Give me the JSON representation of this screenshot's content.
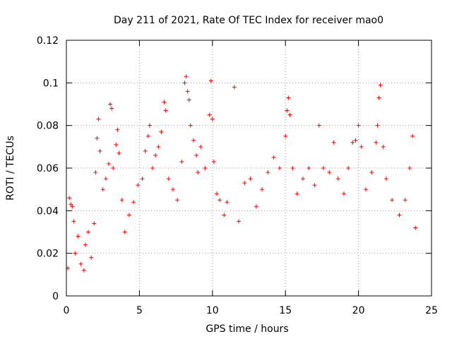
{
  "chart_data": {
    "type": "scatter",
    "title": "Day 211 of 2021, Rate Of TEC Index for receiver mao0",
    "xlabel": "GPS time / hours",
    "ylabel": "ROTI / TECUs",
    "xlim": [
      0,
      25
    ],
    "ylim": [
      0,
      0.12
    ],
    "xticks": [
      0,
      5,
      10,
      15,
      20,
      25
    ],
    "xtick_labels": [
      "0",
      "5",
      "10",
      "15",
      "20",
      "25"
    ],
    "yticks": [
      0,
      0.02,
      0.04,
      0.06,
      0.08,
      0.1,
      0.12
    ],
    "ytick_labels": [
      "0",
      "0.02",
      "0.04",
      "0.06",
      "0.08",
      "0.1",
      "0.12"
    ],
    "grid": true,
    "marker": "+",
    "color": "#ff0000",
    "series": [
      {
        "name": "ROTI",
        "points": [
          [
            0.1,
            0.013
          ],
          [
            0.2,
            0.046
          ],
          [
            0.3,
            0.043
          ],
          [
            0.4,
            0.042
          ],
          [
            0.5,
            0.035
          ],
          [
            0.6,
            0.02
          ],
          [
            0.8,
            0.028
          ],
          [
            1.0,
            0.015
          ],
          [
            1.2,
            0.012
          ],
          [
            1.3,
            0.024
          ],
          [
            1.5,
            0.03
          ],
          [
            1.7,
            0.018
          ],
          [
            1.9,
            0.034
          ],
          [
            2.0,
            0.058
          ],
          [
            2.1,
            0.074
          ],
          [
            2.2,
            0.083
          ],
          [
            2.3,
            0.068
          ],
          [
            2.5,
            0.05
          ],
          [
            2.7,
            0.055
          ],
          [
            2.9,
            0.062
          ],
          [
            3.0,
            0.09
          ],
          [
            3.1,
            0.088
          ],
          [
            3.2,
            0.06
          ],
          [
            3.4,
            0.071
          ],
          [
            3.5,
            0.078
          ],
          [
            3.6,
            0.067
          ],
          [
            3.8,
            0.045
          ],
          [
            4.0,
            0.03
          ],
          [
            4.3,
            0.038
          ],
          [
            4.6,
            0.044
          ],
          [
            4.9,
            0.052
          ],
          [
            5.2,
            0.055
          ],
          [
            5.4,
            0.068
          ],
          [
            5.6,
            0.075
          ],
          [
            5.7,
            0.08
          ],
          [
            5.9,
            0.06
          ],
          [
            6.1,
            0.066
          ],
          [
            6.3,
            0.07
          ],
          [
            6.5,
            0.077
          ],
          [
            6.7,
            0.091
          ],
          [
            6.8,
            0.087
          ],
          [
            7.0,
            0.055
          ],
          [
            7.3,
            0.05
          ],
          [
            7.6,
            0.045
          ],
          [
            7.9,
            0.063
          ],
          [
            8.1,
            0.1
          ],
          [
            8.2,
            0.103
          ],
          [
            8.3,
            0.096
          ],
          [
            8.4,
            0.092
          ],
          [
            8.5,
            0.08
          ],
          [
            8.7,
            0.073
          ],
          [
            8.9,
            0.066
          ],
          [
            9.0,
            0.058
          ],
          [
            9.2,
            0.07
          ],
          [
            9.5,
            0.06
          ],
          [
            9.8,
            0.085
          ],
          [
            9.9,
            0.101
          ],
          [
            10.0,
            0.083
          ],
          [
            10.1,
            0.063
          ],
          [
            10.3,
            0.048
          ],
          [
            10.5,
            0.045
          ],
          [
            10.8,
            0.038
          ],
          [
            11.0,
            0.044
          ],
          [
            11.5,
            0.098
          ],
          [
            11.8,
            0.035
          ],
          [
            12.2,
            0.053
          ],
          [
            12.6,
            0.055
          ],
          [
            13.0,
            0.042
          ],
          [
            13.4,
            0.05
          ],
          [
            13.8,
            0.058
          ],
          [
            14.2,
            0.065
          ],
          [
            14.6,
            0.06
          ],
          [
            15.0,
            0.075
          ],
          [
            15.1,
            0.087
          ],
          [
            15.2,
            0.093
          ],
          [
            15.3,
            0.085
          ],
          [
            15.5,
            0.06
          ],
          [
            15.8,
            0.048
          ],
          [
            16.2,
            0.055
          ],
          [
            16.6,
            0.06
          ],
          [
            17.0,
            0.052
          ],
          [
            17.3,
            0.08
          ],
          [
            17.6,
            0.06
          ],
          [
            18.0,
            0.058
          ],
          [
            18.3,
            0.072
          ],
          [
            18.6,
            0.055
          ],
          [
            19.0,
            0.048
          ],
          [
            19.3,
            0.06
          ],
          [
            19.6,
            0.072
          ],
          [
            19.8,
            0.073
          ],
          [
            20.0,
            0.08
          ],
          [
            20.2,
            0.07
          ],
          [
            20.5,
            0.05
          ],
          [
            20.9,
            0.058
          ],
          [
            21.2,
            0.072
          ],
          [
            21.3,
            0.08
          ],
          [
            21.4,
            0.093
          ],
          [
            21.5,
            0.099
          ],
          [
            21.7,
            0.07
          ],
          [
            21.9,
            0.055
          ],
          [
            22.3,
            0.045
          ],
          [
            22.8,
            0.038
          ],
          [
            23.2,
            0.045
          ],
          [
            23.5,
            0.06
          ],
          [
            23.7,
            0.075
          ],
          [
            23.9,
            0.032
          ]
        ]
      }
    ]
  }
}
